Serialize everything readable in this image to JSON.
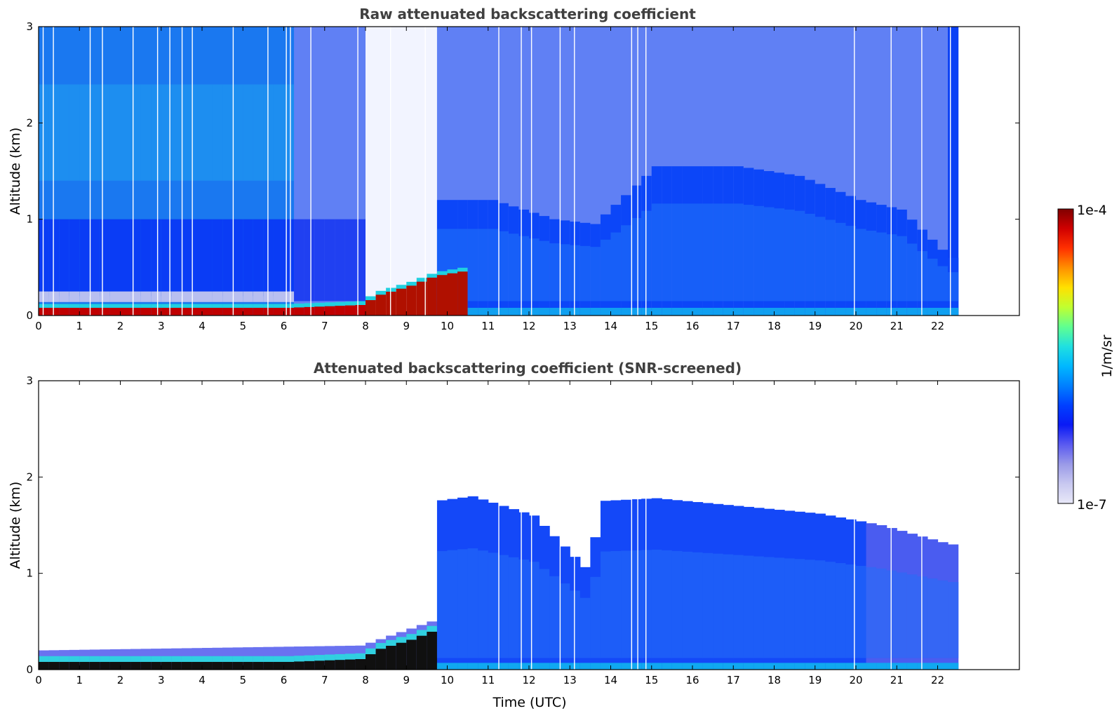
{
  "chart_data": [
    {
      "type": "heatmap",
      "title": "Raw attenuated backscattering coefficient",
      "xlabel": "",
      "ylabel": "Altitude (km)",
      "xlim": [
        0,
        24
      ],
      "ylim": [
        0,
        3
      ],
      "xticks": [
        "0",
        "1",
        "2",
        "3",
        "4",
        "5",
        "6",
        "7",
        "8",
        "9",
        "10",
        "11",
        "12",
        "13",
        "14",
        "15",
        "16",
        "17",
        "18",
        "19",
        "20",
        "21",
        "22"
      ],
      "yticks": [
        "0",
        "1",
        "2",
        "3"
      ],
      "data_end_hour": 22.5,
      "missing_profiles_hours": [
        0.1,
        0.35,
        1.25,
        1.55,
        2.3,
        2.9,
        3.2,
        3.5,
        3.75,
        4.75,
        5.6,
        6.05,
        6.15,
        6.65,
        7.8,
        8.6,
        9.45,
        11.25,
        11.8,
        12.05,
        12.75,
        13.1,
        14.5,
        14.65,
        14.85,
        19.95,
        20.85,
        21.6,
        22.3
      ],
      "low_layer_top_km": [
        [
          0,
          0.12
        ],
        [
          6,
          0.12
        ],
        [
          7.8,
          0.15
        ],
        [
          8.2,
          0.25
        ],
        [
          9.0,
          0.35
        ],
        [
          9.6,
          0.45
        ],
        [
          10.3,
          0.5
        ]
      ],
      "aerosol_layer_top_km": [
        [
          9.6,
          1.2
        ],
        [
          11,
          1.2
        ],
        [
          12.5,
          1.0
        ],
        [
          13.5,
          0.95
        ],
        [
          15,
          1.55
        ],
        [
          17,
          1.55
        ],
        [
          18.5,
          1.45
        ],
        [
          20,
          1.2
        ],
        [
          21,
          1.1
        ],
        [
          22.2,
          0.6
        ]
      ],
      "noise_region_start_hour": 6.2
    },
    {
      "type": "heatmap",
      "title": "Attenuated backscattering coefficient (SNR-screened)",
      "xlabel": "Time (UTC)",
      "ylabel": "Altitude (km)",
      "xlim": [
        0,
        24
      ],
      "ylim": [
        0,
        3
      ],
      "xticks": [
        "0",
        "1",
        "2",
        "3",
        "4",
        "5",
        "6",
        "7",
        "8",
        "9",
        "10",
        "11",
        "12",
        "13",
        "14",
        "15",
        "16",
        "17",
        "18",
        "19",
        "20",
        "21",
        "22"
      ],
      "yticks": [
        "0",
        "1",
        "2",
        "3"
      ],
      "data_end_hour": 22.5,
      "screened_top_km": [
        [
          0,
          0.2
        ],
        [
          7.8,
          0.25
        ],
        [
          9.5,
          0.5
        ],
        [
          9.6,
          1.75
        ],
        [
          10.5,
          1.8
        ],
        [
          12,
          1.6
        ],
        [
          13.4,
          1.0
        ],
        [
          13.6,
          1.75
        ],
        [
          15,
          1.78
        ],
        [
          17,
          1.7
        ],
        [
          19,
          1.62
        ],
        [
          20.5,
          1.5
        ],
        [
          22.2,
          1.3
        ]
      ],
      "missing_profiles_hours": [
        11.25,
        11.8,
        12.05,
        12.75,
        13.1,
        14.5,
        14.65,
        14.85,
        19.95,
        20.85,
        21.6
      ]
    }
  ],
  "colorbar": {
    "label": "1/m/sr",
    "max_label": "1e-4",
    "min_label": "1e-7",
    "scale": "log",
    "colors": [
      "#e8e8f8",
      "#c8c8f0",
      "#9a9ae8",
      "#5a5af0",
      "#0a1af5",
      "#0040ff",
      "#0080ff",
      "#00b8ff",
      "#20e0e0",
      "#60ff90",
      "#c0ff30",
      "#ffe000",
      "#ff9000",
      "#ff3000",
      "#d00000",
      "#800000"
    ]
  }
}
